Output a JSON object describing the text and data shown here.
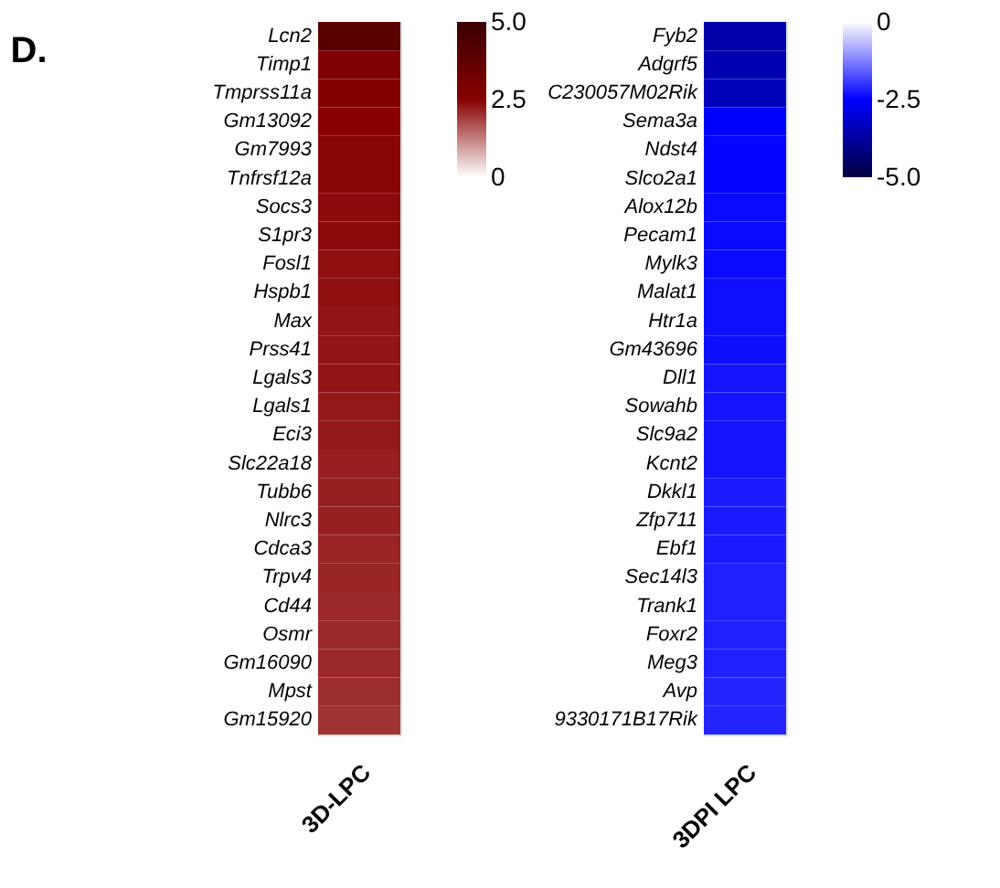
{
  "chart_data": [
    {
      "type": "heatmap",
      "title": "D.",
      "xlabel": null,
      "categories": [
        "3D-LPC"
      ],
      "y_categories": [
        "Lcn2",
        "Timp1",
        "Tmprss11a",
        "Gm13092",
        "Gm7993",
        "Tnfrsf12a",
        "Socs3",
        "S1pr3",
        "Fosl1",
        "Hspb1",
        "Max",
        "Prss41",
        "Lgals3",
        "Lgals1",
        "Eci3",
        "Slc22a18",
        "Tubb6",
        "Nlrc3",
        "Cdca3",
        "Trpv4",
        "Cd44",
        "Osmr",
        "Gm16090",
        "Mpst",
        "Gm15920"
      ],
      "cells": [
        [
          4.0
        ],
        [
          2.8
        ],
        [
          2.7
        ],
        [
          2.5
        ],
        [
          2.45
        ],
        [
          2.45
        ],
        [
          2.4
        ],
        [
          2.4
        ],
        [
          2.35
        ],
        [
          2.35
        ],
        [
          2.3
        ],
        [
          2.3
        ],
        [
          2.3
        ],
        [
          2.25
        ],
        [
          2.25
        ],
        [
          2.2
        ],
        [
          2.2
        ],
        [
          2.2
        ],
        [
          2.15
        ],
        [
          2.15
        ],
        [
          2.1
        ],
        [
          2.1
        ],
        [
          2.1
        ],
        [
          2.05
        ],
        [
          2.0
        ]
      ],
      "clim": [
        0,
        5
      ],
      "cticks": [
        0,
        2.5,
        {
          "value": 5,
          "label": "5.0"
        }
      ]
    },
    {
      "type": "heatmap",
      "categories": [
        "3DPI LPC"
      ],
      "y_categories": [
        "Fyb2",
        "Adgrf5",
        "C230057M02Rik",
        "Sema3a",
        "Ndst4",
        "Slco2a1",
        "Alox12b",
        "Pecam1",
        "Mylk3",
        "Malat1",
        "Htr1a",
        "Gm43696",
        "Dll1",
        "Sowahb",
        "Slc9a2",
        "Kcnt2",
        "Dkkl1",
        "Zfp711",
        "Ebf1",
        "Sec14l3",
        "Trank1",
        "Foxr2",
        "Meg3",
        "Avp",
        "9330171B17Rik"
      ],
      "cells": [
        [
          -3.6
        ],
        [
          -3.5
        ],
        [
          -3.4
        ],
        [
          -2.5
        ],
        [
          -2.45
        ],
        [
          -2.45
        ],
        [
          -2.4
        ],
        [
          -2.4
        ],
        [
          -2.4
        ],
        [
          -2.35
        ],
        [
          -2.35
        ],
        [
          -2.35
        ],
        [
          -2.3
        ],
        [
          -2.3
        ],
        [
          -2.3
        ],
        [
          -2.3
        ],
        [
          -2.25
        ],
        [
          -2.25
        ],
        [
          -2.25
        ],
        [
          -2.2
        ],
        [
          -2.2
        ],
        [
          -2.2
        ],
        [
          -2.2
        ],
        [
          -2.15
        ],
        [
          -2.15
        ]
      ],
      "clim": [
        -5,
        0
      ],
      "cticks": [
        {
          "value": -5,
          "label": "-5.0"
        },
        -2.5,
        0
      ]
    }
  ]
}
